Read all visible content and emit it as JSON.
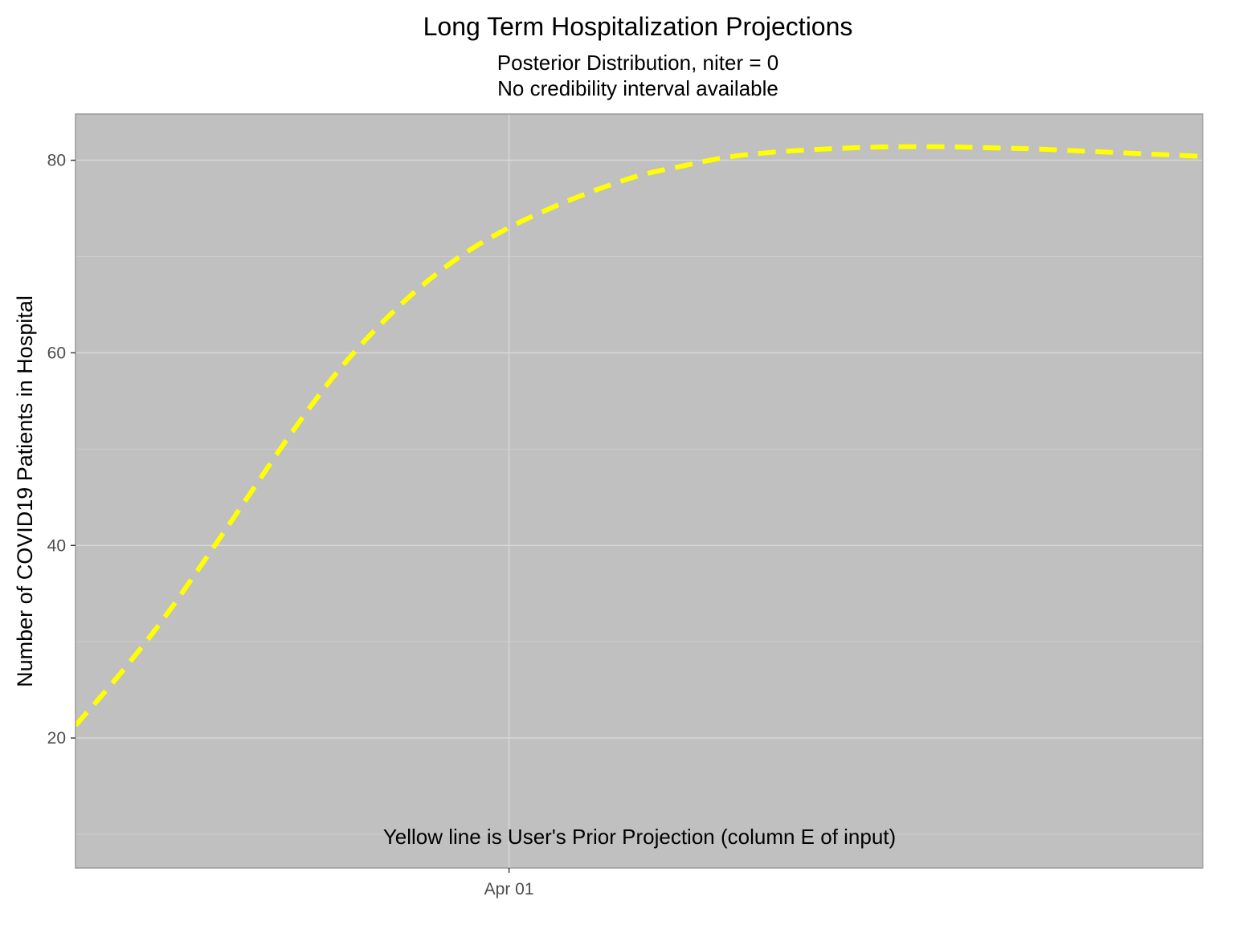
{
  "chart_data": {
    "type": "line",
    "title": "Long Term Hospitalization Projections",
    "subtitle_lines": [
      "Posterior Distribution, niter = 0",
      "No credibility interval available"
    ],
    "xlabel": "",
    "ylabel": "Number of COVID19 Patients in Hospital",
    "x_ticks": [
      {
        "value": "2020-04-01",
        "label": "Apr 01"
      }
    ],
    "xlim": [
      "2020-03-22",
      "2020-04-17"
    ],
    "y_ticks": [
      20,
      40,
      60,
      80
    ],
    "ylim": [
      6.5,
      84.8
    ],
    "grid": true,
    "background_color": "#c0c0c0",
    "grid_major_color": "#d9d9d9",
    "grid_minor_color": "#cccccc",
    "annotation": "Yellow line is User's Prior Projection (column E of input)",
    "series": [
      {
        "color": "#ffff00",
        "line_style": "dashed",
        "x": [
          "2020-03-22",
          "2020-03-23",
          "2020-03-24",
          "2020-03-25",
          "2020-03-26",
          "2020-03-27",
          "2020-03-28",
          "2020-03-29",
          "2020-03-30",
          "2020-03-31",
          "2020-04-01",
          "2020-04-02",
          "2020-04-03",
          "2020-04-04",
          "2020-04-05",
          "2020-04-06",
          "2020-04-07",
          "2020-04-08",
          "2020-04-09",
          "2020-04-10",
          "2020-04-11",
          "2020-04-12",
          "2020-04-13",
          "2020-04-14",
          "2020-04-15",
          "2020-04-16",
          "2020-04-17"
        ],
        "values": [
          21.3,
          26.5,
          32.2,
          38.6,
          45.2,
          51.8,
          57.8,
          62.8,
          67.0,
          70.4,
          73.0,
          75.1,
          76.9,
          78.4,
          79.4,
          80.3,
          80.8,
          81.1,
          81.3,
          81.4,
          81.4,
          81.3,
          81.2,
          81.0,
          80.8,
          80.6,
          80.4
        ]
      }
    ]
  }
}
